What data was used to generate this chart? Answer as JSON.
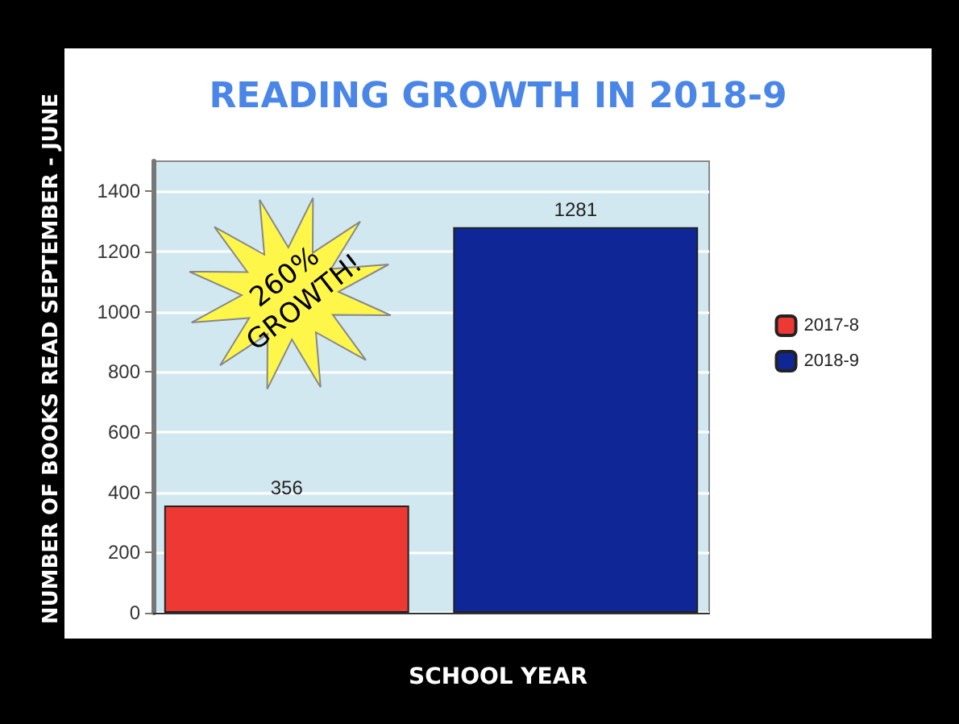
{
  "chart_data": {
    "type": "bar",
    "title": "READING GROWTH IN 2018-9",
    "xlabel": "SCHOOL YEAR",
    "ylabel": "NUMBER OF BOOKS READ SEPTEMBER - JUNE",
    "categories": [
      null
    ],
    "series": [
      {
        "name": "2017-8",
        "color": "#ee3833",
        "values": [
          356
        ]
      },
      {
        "name": "2018-9",
        "color": "#0f2696",
        "values": [
          1281
        ]
      }
    ],
    "ylim": [
      0,
      1500
    ],
    "yticks": [
      0,
      200,
      400,
      600,
      800,
      1000,
      1200,
      1400
    ],
    "grid": "y",
    "legend": "right",
    "data_labels": true,
    "annotations": [
      "260% GROWTH!"
    ]
  }
}
